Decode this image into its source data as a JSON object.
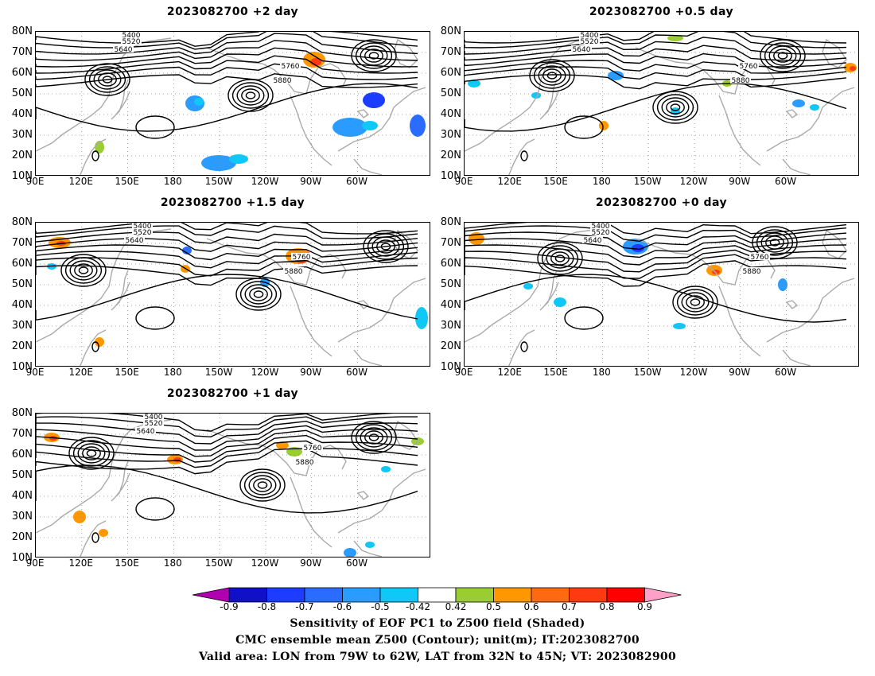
{
  "panels": [
    {
      "id": "p1",
      "title": "2023082700 +2 day"
    },
    {
      "id": "p2",
      "title": "2023082700 +0.5 day"
    },
    {
      "id": "p3",
      "title": "2023082700 +1.5 day"
    },
    {
      "id": "p4",
      "title": "2023082700 +0 day"
    },
    {
      "id": "p5",
      "title": "2023082700 +1 day"
    }
  ],
  "axes": {
    "lat_ticks": [
      "80N",
      "70N",
      "60N",
      "50N",
      "40N",
      "30N",
      "20N",
      "10N"
    ],
    "lon_ticks": [
      "90E",
      "120E",
      "150E",
      "180",
      "150W",
      "120W",
      "90W",
      "60W"
    ]
  },
  "contour_labels": [
    "5400",
    "5520",
    "5640",
    "5760",
    "5880"
  ],
  "colorbar": {
    "ticks": [
      "-0.9",
      "-0.8",
      "-0.7",
      "-0.6",
      "-0.5",
      "-0.42",
      "0.42",
      "0.5",
      "0.6",
      "0.7",
      "0.8",
      "0.9"
    ],
    "colors": [
      "#b000b0",
      "#1010c8",
      "#1c3cff",
      "#2a6cff",
      "#2a9cff",
      "#10c8f8",
      "#ffffff",
      "#9acd32",
      "#ff9800",
      "#ff6a10",
      "#ff3a10",
      "#ff0000",
      "#ffa0c8"
    ]
  },
  "caption": {
    "line1": "Sensitivity of EOF PC1 to Z500 field (Shaded)",
    "line2": "CMC ensemble mean Z500 (Contour); unit(m); IT:2023082700",
    "line3": "Valid area: LON from 79W to 62W, LAT from 32N to 45N; VT: 2023082900"
  }
}
